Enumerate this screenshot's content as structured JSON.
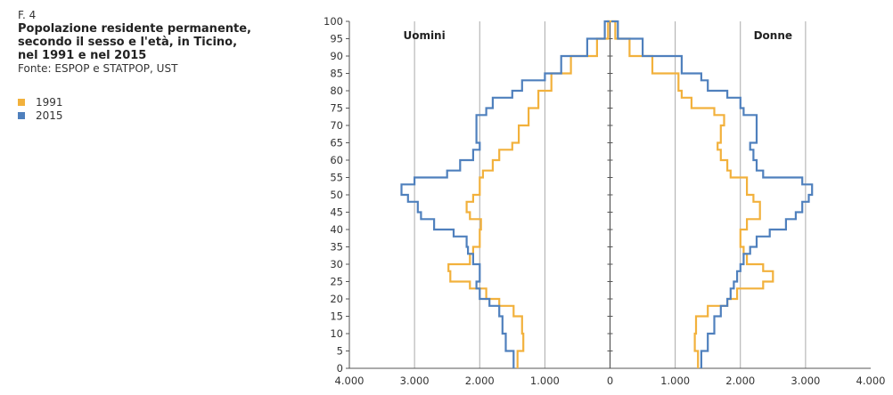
{
  "figure": {
    "label": "F. 4",
    "title_lines": [
      "Popolazione residente permanente,",
      "secondo il sesso e l'età, in Ticino,",
      "nel 1991 e nel 2015"
    ],
    "source": "Fonte: ESPOP e STATPOP, UST"
  },
  "legend": [
    {
      "name": "1991",
      "color": "#f2b13c"
    },
    {
      "name": "2015",
      "color": "#4f80bd"
    }
  ],
  "colors": {
    "grid": "#aaaaaa",
    "axis": "#555555"
  },
  "chart_data": {
    "type": "line",
    "subtype": "population-pyramid-step",
    "panels": [
      {
        "side": "left",
        "label": "Uomini"
      },
      {
        "side": "right",
        "label": "Donne"
      }
    ],
    "y_axis": {
      "min": 0,
      "max": 100,
      "tick_step": 5,
      "ticks": [
        "0",
        "5",
        "10",
        "15",
        "20",
        "25",
        "30",
        "35",
        "40",
        "45",
        "50",
        "55",
        "60",
        "65",
        "70",
        "75",
        "80",
        "85",
        "90",
        "95",
        "100"
      ]
    },
    "x_axis": {
      "min": -4000,
      "max": 4000,
      "grid_values": [
        -3000,
        -2000,
        -1000,
        0,
        1000,
        2000,
        3000
      ],
      "tick_labels": [
        "4.000",
        "3.000",
        "2.000",
        "1.000",
        "0",
        "1.000",
        "2.000",
        "3.000",
        "4.000"
      ]
    },
    "series": [
      {
        "name": "1991",
        "men": [
          [
            0,
            1420
          ],
          [
            5,
            1330
          ],
          [
            10,
            1350
          ],
          [
            15,
            1480
          ],
          [
            18,
            1700
          ],
          [
            20,
            1900
          ],
          [
            23,
            2150
          ],
          [
            25,
            2450
          ],
          [
            28,
            2480
          ],
          [
            30,
            2150
          ],
          [
            33,
            2100
          ],
          [
            35,
            2000
          ],
          [
            40,
            1980
          ],
          [
            43,
            2150
          ],
          [
            45,
            2200
          ],
          [
            48,
            2100
          ],
          [
            50,
            2000
          ],
          [
            55,
            1950
          ],
          [
            57,
            1800
          ],
          [
            60,
            1700
          ],
          [
            63,
            1500
          ],
          [
            65,
            1400
          ],
          [
            70,
            1250
          ],
          [
            75,
            1100
          ],
          [
            80,
            900
          ],
          [
            85,
            600
          ],
          [
            90,
            200
          ],
          [
            95,
            30
          ],
          [
            100,
            0
          ]
        ],
        "women": [
          [
            0,
            1350
          ],
          [
            5,
            1300
          ],
          [
            10,
            1320
          ],
          [
            15,
            1500
          ],
          [
            18,
            1800
          ],
          [
            20,
            1950
          ],
          [
            23,
            2350
          ],
          [
            25,
            2500
          ],
          [
            28,
            2350
          ],
          [
            30,
            2100
          ],
          [
            33,
            2050
          ],
          [
            35,
            2000
          ],
          [
            40,
            2100
          ],
          [
            43,
            2300
          ],
          [
            45,
            2300
          ],
          [
            48,
            2200
          ],
          [
            50,
            2100
          ],
          [
            55,
            1850
          ],
          [
            57,
            1800
          ],
          [
            60,
            1700
          ],
          [
            63,
            1650
          ],
          [
            65,
            1700
          ],
          [
            70,
            1750
          ],
          [
            73,
            1600
          ],
          [
            75,
            1250
          ],
          [
            78,
            1100
          ],
          [
            80,
            1050
          ],
          [
            85,
            650
          ],
          [
            90,
            300
          ],
          [
            95,
            80
          ],
          [
            100,
            0
          ]
        ]
      },
      {
        "name": "2015",
        "men": [
          [
            0,
            1480
          ],
          [
            5,
            1600
          ],
          [
            10,
            1650
          ],
          [
            15,
            1700
          ],
          [
            18,
            1850
          ],
          [
            20,
            2000
          ],
          [
            23,
            2050
          ],
          [
            25,
            2000
          ],
          [
            28,
            2000
          ],
          [
            30,
            2100
          ],
          [
            33,
            2180
          ],
          [
            35,
            2200
          ],
          [
            38,
            2400
          ],
          [
            40,
            2700
          ],
          [
            43,
            2900
          ],
          [
            45,
            2950
          ],
          [
            48,
            3100
          ],
          [
            50,
            3200
          ],
          [
            53,
            3000
          ],
          [
            55,
            2500
          ],
          [
            57,
            2300
          ],
          [
            60,
            2100
          ],
          [
            63,
            2000
          ],
          [
            65,
            2050
          ],
          [
            70,
            2050
          ],
          [
            73,
            1900
          ],
          [
            75,
            1800
          ],
          [
            78,
            1500
          ],
          [
            80,
            1350
          ],
          [
            83,
            1000
          ],
          [
            85,
            750
          ],
          [
            90,
            350
          ],
          [
            95,
            80
          ],
          [
            100,
            10
          ]
        ],
        "women": [
          [
            0,
            1400
          ],
          [
            5,
            1500
          ],
          [
            10,
            1600
          ],
          [
            15,
            1700
          ],
          [
            18,
            1800
          ],
          [
            20,
            1850
          ],
          [
            23,
            1900
          ],
          [
            25,
            1950
          ],
          [
            28,
            2000
          ],
          [
            30,
            2050
          ],
          [
            33,
            2150
          ],
          [
            35,
            2250
          ],
          [
            38,
            2450
          ],
          [
            40,
            2700
          ],
          [
            43,
            2850
          ],
          [
            45,
            2950
          ],
          [
            48,
            3050
          ],
          [
            50,
            3100
          ],
          [
            53,
            2950
          ],
          [
            55,
            2350
          ],
          [
            57,
            2250
          ],
          [
            60,
            2200
          ],
          [
            63,
            2150
          ],
          [
            65,
            2250
          ],
          [
            70,
            2250
          ],
          [
            73,
            2050
          ],
          [
            75,
            2000
          ],
          [
            78,
            1800
          ],
          [
            80,
            1500
          ],
          [
            83,
            1400
          ],
          [
            85,
            1100
          ],
          [
            90,
            500
          ],
          [
            95,
            120
          ],
          [
            100,
            20
          ]
        ]
      }
    ]
  }
}
